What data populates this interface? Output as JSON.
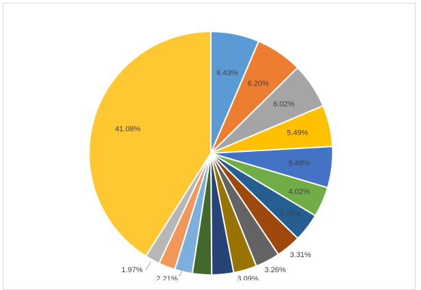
{
  "chart_data": {
    "type": "pie",
    "title": "",
    "legend": "none",
    "slices": [
      {
        "value": 6.43,
        "label": "6.43%",
        "color": "#5b9bd5"
      },
      {
        "value": 6.2,
        "label": "6.20%",
        "color": "#ed7d31"
      },
      {
        "value": 6.02,
        "label": "6.02%",
        "color": "#a5a5a5"
      },
      {
        "value": 5.49,
        "label": "5.49%",
        "color": "#ffc000"
      },
      {
        "value": 5.46,
        "label": "5.46%",
        "color": "#4472c4"
      },
      {
        "value": 4.02,
        "label": "4.02%",
        "color": "#70ad47"
      },
      {
        "value": 3.76,
        "label": "3.76%",
        "color": "#255e91"
      },
      {
        "value": 3.31,
        "label": "3.31%",
        "color": "#9e480e"
      },
      {
        "value": 3.26,
        "label": "3.26%",
        "color": "#636363"
      },
      {
        "value": 3.09,
        "label": "3.09%",
        "color": "#997300"
      },
      {
        "value": 2.9,
        "label": "",
        "color": "#264478"
      },
      {
        "value": 2.55,
        "label": "",
        "color": "#43682b"
      },
      {
        "value": 2.35,
        "label": "",
        "color": "#7cafdd"
      },
      {
        "value": 2.21,
        "label": "2.21%",
        "color": "#f1975a"
      },
      {
        "value": 1.97,
        "label": "1.97%",
        "color": "#b7b7b7"
      },
      {
        "value": 41.08,
        "label": "41.08%",
        "color": "#ffc832"
      }
    ]
  }
}
